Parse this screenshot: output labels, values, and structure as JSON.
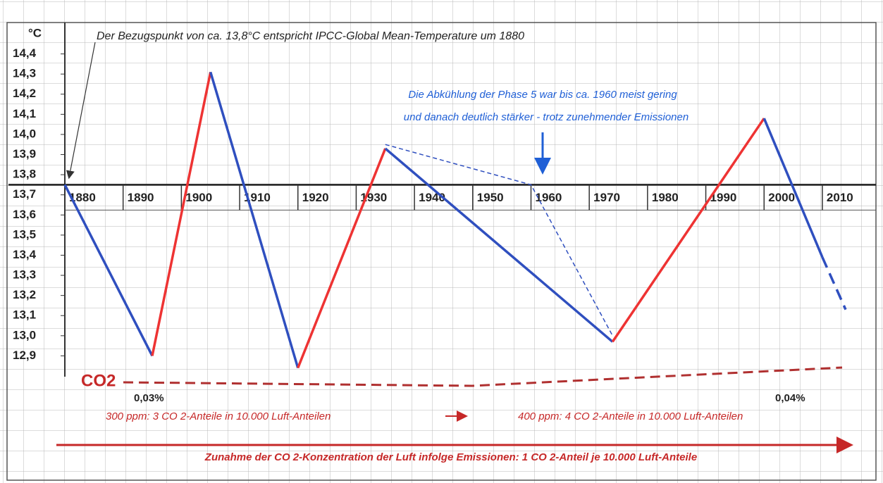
{
  "chart_data": {
    "type": "line",
    "unit_label": "°C",
    "title": "Der Bezugspunkt von ca. 13,8°C entspricht IPCC-Global Mean-Temperature um 1880",
    "annotation": [
      "Die Abkühlung der Phase 5 war bis ca. 1960 meist gering",
      "und danach deutlich stärker - trotz zunehmender Emissionen"
    ],
    "x": [
      1880,
      1895,
      1905,
      1920,
      1935,
      1974,
      2000,
      2010,
      2014
    ],
    "values": [
      13.75,
      12.9,
      14.31,
      12.84,
      13.93,
      12.97,
      14.08,
      13.39,
      13.13
    ],
    "segment_colors": [
      "#2f4fbf",
      "#ee3333",
      "#2f4fbf",
      "#ee3333",
      "#2f4fbf",
      "#ee3333",
      "#2f4fbf",
      "#2f4fbf"
    ],
    "segment_styles": [
      "solid",
      "solid",
      "solid",
      "solid",
      "solid",
      "solid",
      "solid",
      "dashed"
    ],
    "overlay": {
      "x": [
        1935,
        1960,
        1974
      ],
      "values": [
        13.95,
        13.75,
        13.0
      ],
      "color": "#2f4fbf"
    },
    "xlim": [
      1880,
      2014
    ],
    "ylim": [
      12.8,
      14.5
    ],
    "xticks": [
      1880,
      1890,
      1900,
      1910,
      1920,
      1930,
      1940,
      1950,
      1960,
      1970,
      1980,
      1990,
      2000,
      2010
    ],
    "yticks": [
      {
        "value": 12.9,
        "label": "12,9"
      },
      {
        "value": 13.0,
        "label": "13,0"
      },
      {
        "value": 13.1,
        "label": "13,1"
      },
      {
        "value": 13.2,
        "label": "13,2"
      },
      {
        "value": 13.3,
        "label": "13,3"
      },
      {
        "value": 13.4,
        "label": "13,4"
      },
      {
        "value": 13.5,
        "label": "13,5"
      },
      {
        "value": 13.6,
        "label": "13,6"
      },
      {
        "value": 13.7,
        "label": "13,7"
      },
      {
        "value": 13.8,
        "label": "13,8"
      },
      {
        "value": 13.9,
        "label": "13,9"
      },
      {
        "value": 14.0,
        "label": "14,0"
      },
      {
        "value": 14.1,
        "label": "14,1"
      },
      {
        "value": 14.2,
        "label": "14,2"
      },
      {
        "value": 14.3,
        "label": "14,3"
      },
      {
        "value": 14.4,
        "label": "14,4"
      }
    ],
    "co2": {
      "label": "CO2",
      "start": "0,03%",
      "end": "0,04%",
      "note_start": "300 ppm: 3 CO 2-Anteile in 10.000 Luft-Anteilen",
      "note_end": "400 ppm: 4 CO 2-Anteile in 10.000 Luft-Anteilen",
      "footer": "Zunahme der CO 2-Konzentration der Luft infolge Emissionen: 1 CO 2-Anteil je 10.000 Luft-Anteile"
    }
  }
}
